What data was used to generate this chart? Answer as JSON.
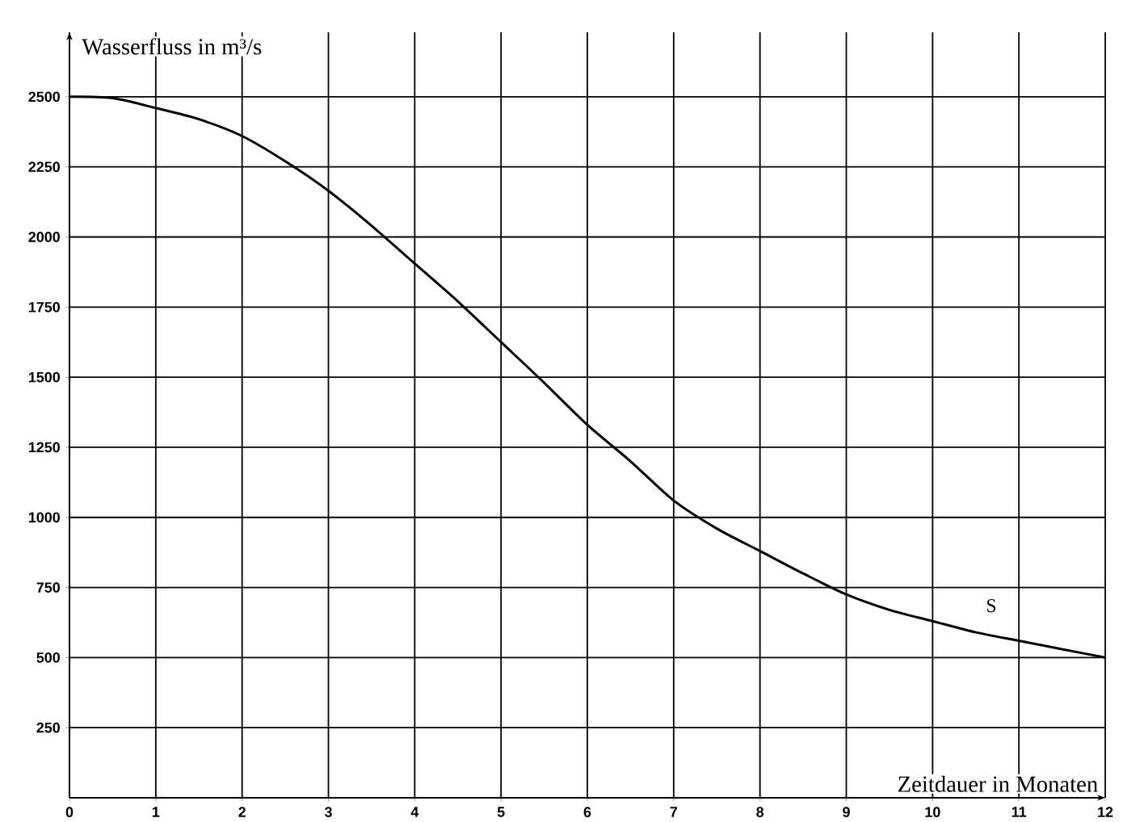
{
  "chart_data": {
    "type": "line",
    "xlabel": "Zeitdauer in Monaten",
    "ylabel": "Wasserfluss in m³/s",
    "x": [
      0,
      0.5,
      1,
      1.5,
      2,
      2.5,
      3,
      3.5,
      4,
      4.5,
      5,
      5.5,
      6,
      6.5,
      7,
      7.5,
      8,
      8.5,
      9,
      9.5,
      10,
      10.5,
      11,
      11.5,
      12
    ],
    "series": [
      {
        "color": "#000000",
        "values": [
          2500,
          2495,
          2460,
          2420,
          2360,
          2270,
          2165,
          2040,
          1905,
          1770,
          1625,
          1480,
          1330,
          1200,
          1060,
          960,
          880,
          800,
          725,
          670,
          630,
          590,
          560,
          530,
          500
        ]
      }
    ],
    "annotations": [
      "S"
    ],
    "xlim": [
      0,
      12
    ],
    "ylim": [
      0,
      2730
    ],
    "xticks": [
      0,
      1,
      2,
      3,
      4,
      5,
      6,
      7,
      8,
      9,
      10,
      11,
      12
    ],
    "yticks": [
      250,
      500,
      750,
      1000,
      1250,
      1500,
      1750,
      2000,
      2250,
      2500
    ],
    "grid": true,
    "marker": "none",
    "line_style": "solid"
  }
}
